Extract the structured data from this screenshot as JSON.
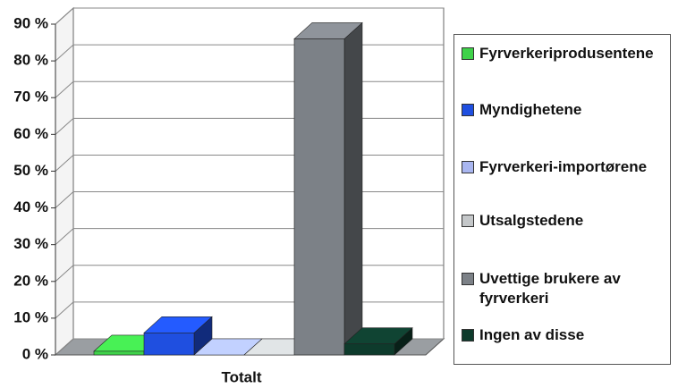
{
  "chart_data": {
    "type": "bar3d",
    "categories": [
      "Totalt"
    ],
    "series": [
      {
        "name": "Fyrverkeriprodusentene",
        "color": "#3fd24a",
        "values": [
          1
        ]
      },
      {
        "name": "Myndighetene",
        "color": "#1f4fe0",
        "values": [
          6
        ]
      },
      {
        "name": "Fyrverkeri-importørene",
        "color": "#a9b6f0",
        "values": [
          0
        ]
      },
      {
        "name": "Utsalgstedene",
        "color": "#c4c7c9",
        "values": [
          0
        ]
      },
      {
        "name": "Uvettige brukere av fyrverkeri",
        "color": "#7c8187",
        "values": [
          86
        ]
      },
      {
        "name": "Ingen av disse",
        "color": "#0e3b2c",
        "values": [
          3
        ]
      }
    ],
    "ylim": [
      0,
      90
    ],
    "yticks": [
      {
        "value": 0,
        "label": "0 %"
      },
      {
        "value": 10,
        "label": "10 %"
      },
      {
        "value": 20,
        "label": "20 %"
      },
      {
        "value": 30,
        "label": "30 %"
      },
      {
        "value": 40,
        "label": "40 %"
      },
      {
        "value": 50,
        "label": "50 %"
      },
      {
        "value": 60,
        "label": "60 %"
      },
      {
        "value": 70,
        "label": "70 %"
      },
      {
        "value": 80,
        "label": "80 %"
      },
      {
        "value": 90,
        "label": "90 %"
      }
    ],
    "grid": true,
    "legend": "right"
  }
}
